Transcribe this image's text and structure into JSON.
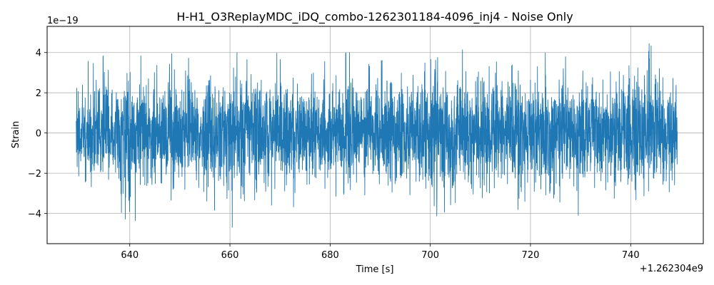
{
  "chart_data": {
    "type": "line",
    "title": "H-H1_O3ReplayMDC_iDQ_combo-1262301184-4096_inj4 - Noise Only",
    "xlabel": "Time [s]",
    "ylabel": "Strain",
    "x_offset_label": "+1.262304e9",
    "y_exponent_label": "1e−19",
    "xlim": [
      623.5,
      754.5
    ],
    "ylim": [
      -5.5,
      5.3
    ],
    "x_ticks": [
      640,
      660,
      680,
      700,
      720,
      740
    ],
    "x_tick_labels": [
      "640",
      "660",
      "680",
      "700",
      "720",
      "740"
    ],
    "y_ticks": [
      -4,
      -2,
      0,
      2,
      4
    ],
    "y_tick_labels": [
      "−4",
      "−2",
      "0",
      "2",
      "4"
    ],
    "grid": true,
    "series": [
      {
        "color": "#1f77b4",
        "x_range": [
          629.3,
          749.3
        ],
        "envelope": {
          "x": [
            629.3,
            630.4,
            632.0,
            633.7,
            635.6,
            637.7,
            639.9,
            640.8,
            642.5,
            644.3,
            646.4,
            648.1,
            650.3,
            652.5,
            654.1,
            656.2,
            658.4,
            659.6,
            661.6,
            662.3,
            664.5,
            666.5,
            668.2,
            670.6,
            672.6,
            674.4,
            675.9,
            677.7,
            680.1,
            681.9,
            683.4,
            685.6,
            687.5,
            689.7,
            691.5,
            693.4,
            695.5,
            697.8,
            699.7,
            700.6,
            702.6,
            704.3,
            706.6,
            708.1,
            710.4,
            712.1,
            714.2,
            715.5,
            717.5,
            719.7,
            721.8,
            723.4,
            725.2,
            726.9,
            729.0,
            731.0,
            733.1,
            734.6,
            736.9,
            738.5,
            740.4,
            742.5,
            744.3,
            746.4,
            747.8,
            749.3
          ],
          "ymax": [
            2.9,
            2.6,
            3.8,
            3.0,
            4.6,
            3.1,
            4.4,
            3.5,
            3.9,
            3.0,
            3.7,
            4.1,
            3.2,
            4.0,
            3.5,
            3.8,
            3.3,
            3.6,
            4.2,
            3.6,
            3.7,
            3.0,
            4.5,
            3.4,
            3.4,
            2.9,
            3.9,
            3.2,
            3.9,
            3.4,
            4.1,
            3.6,
            3.4,
            3.5,
            3.8,
            3.7,
            3.5,
            4.2,
            3.7,
            3.6,
            4.2,
            3.9,
            4.3,
            3.4,
            3.8,
            4.4,
            3.6,
            3.0,
            3.9,
            4.1,
            3.4,
            4.2,
            3.5,
            3.8,
            3.6,
            4.1,
            3.3,
            3.6,
            3.9,
            4.2,
            3.3,
            4.7,
            4.3,
            3.9,
            3.5,
            3.5
          ],
          "ymin": [
            -2.2,
            -2.8,
            -3.9,
            -3.1,
            -3.0,
            -4.1,
            -4.4,
            -4.6,
            -3.2,
            -4.6,
            -3.5,
            -3.3,
            -3.8,
            -3.6,
            -3.2,
            -4.0,
            -3.5,
            -4.9,
            -4.4,
            -5.0,
            -4.3,
            -3.7,
            -3.6,
            -3.3,
            -3.7,
            -3.1,
            -4.8,
            -3.0,
            -3.6,
            -3.3,
            -4.0,
            -3.5,
            -4.0,
            -3.3,
            -3.2,
            -3.1,
            -3.0,
            -3.4,
            -4.2,
            -4.6,
            -4.0,
            -3.5,
            -3.7,
            -3.0,
            -3.5,
            -3.3,
            -3.2,
            -3.6,
            -3.8,
            -3.4,
            -3.6,
            -4.0,
            -3.6,
            -3.5,
            -4.2,
            -3.8,
            -3.7,
            -3.6,
            -3.3,
            -4.1,
            -3.1,
            -3.8,
            -3.9,
            -3.3,
            -2.9,
            -2.4
          ]
        }
      }
    ]
  }
}
